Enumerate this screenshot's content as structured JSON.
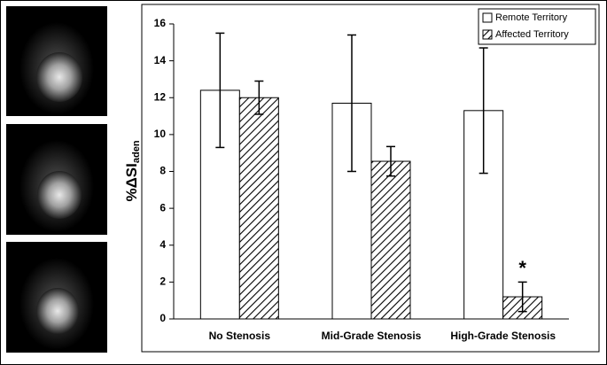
{
  "chart_data": {
    "type": "bar",
    "ylabel": "%ΔSI",
    "ylabel_subscript": "aden",
    "categories": [
      "No Stenosis",
      "Mid-Grade Stenosis",
      "High-Grade Stenosis"
    ],
    "series": [
      {
        "name": "Remote Territory",
        "color": "#ffffff",
        "pattern": "none",
        "values": [
          12.4,
          11.7,
          11.3
        ],
        "errors": [
          3.1,
          3.7,
          3.4
        ]
      },
      {
        "name": "Affected Territory",
        "color": "#000000",
        "pattern": "hatch",
        "values": [
          12.0,
          8.55,
          1.2
        ],
        "errors": [
          0.9,
          0.8,
          0.8
        ]
      }
    ],
    "ylim": [
      0,
      16
    ],
    "yticks": [
      0,
      2,
      4,
      6,
      8,
      10,
      12,
      14,
      16
    ],
    "legend": "top-right",
    "annotation": "*"
  }
}
